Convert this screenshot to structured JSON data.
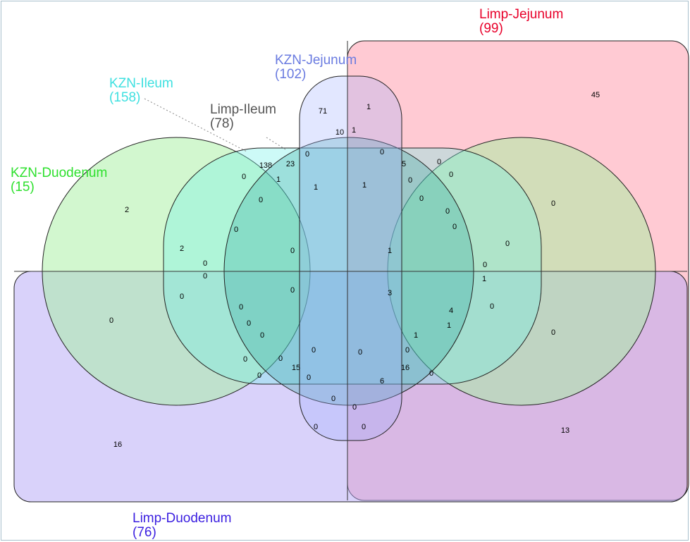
{
  "sets": [
    {
      "name": "Limp-Jejunum",
      "count": "(99)"
    },
    {
      "name": "KZN-Jejunum",
      "count": "(102)"
    },
    {
      "name": "KZN-Ileum",
      "count": "(158)"
    },
    {
      "name": "Limp-Ileum",
      "count": "(78)"
    },
    {
      "name": "KZN-Duodenum",
      "count": "(15)"
    },
    {
      "name": "Limp-Duodenum",
      "count": "(76)"
    }
  ],
  "regions": [
    45,
    71,
    1,
    10,
    1,
    0,
    23,
    138,
    0,
    5,
    0,
    0,
    1,
    0,
    1,
    1,
    0,
    0,
    2,
    0,
    0,
    0,
    0,
    0,
    2,
    0,
    1,
    0,
    0,
    0,
    0,
    1,
    0,
    0,
    3,
    0,
    0,
    4,
    0,
    0,
    1,
    0,
    0,
    1,
    0,
    0,
    0,
    0,
    0,
    16,
    15,
    0,
    0,
    0,
    6,
    0,
    0,
    0,
    0,
    16,
    13
  ]
}
